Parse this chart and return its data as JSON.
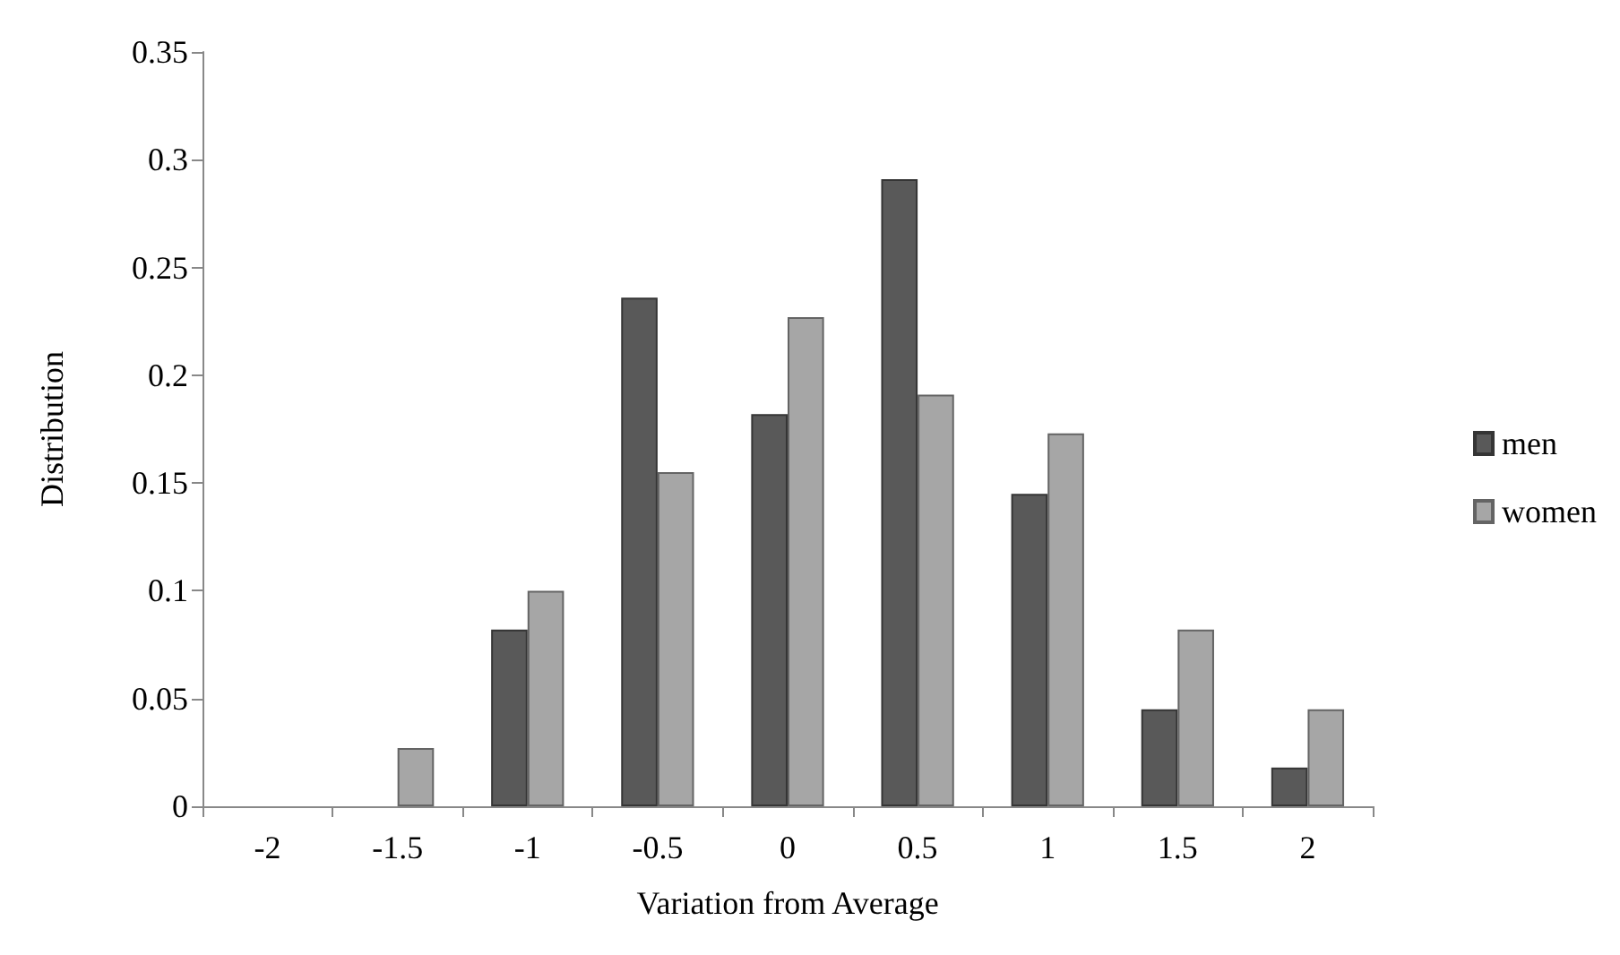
{
  "chart_data": {
    "type": "bar",
    "xlabel": "Variation from Average",
    "ylabel": "Distribution",
    "categories": [
      "-2",
      "-1.5",
      "-1",
      "-0.5",
      "0",
      "0.5",
      "1",
      "1.5",
      "2"
    ],
    "series": [
      {
        "name": "men",
        "color": "#595959",
        "values": [
          0,
          0,
          0.082,
          0.236,
          0.182,
          0.291,
          0.145,
          0.045,
          0.018
        ]
      },
      {
        "name": "women",
        "color": "#a6a6a6",
        "values": [
          0,
          0.027,
          0.1,
          0.155,
          0.227,
          0.191,
          0.173,
          0.082,
          0.045
        ]
      }
    ],
    "ylim": [
      0,
      0.35
    ],
    "yticks": [
      0,
      0.05,
      0.1,
      0.15,
      0.2,
      0.25,
      0.3,
      0.35
    ],
    "grid": false,
    "legend": "right"
  }
}
